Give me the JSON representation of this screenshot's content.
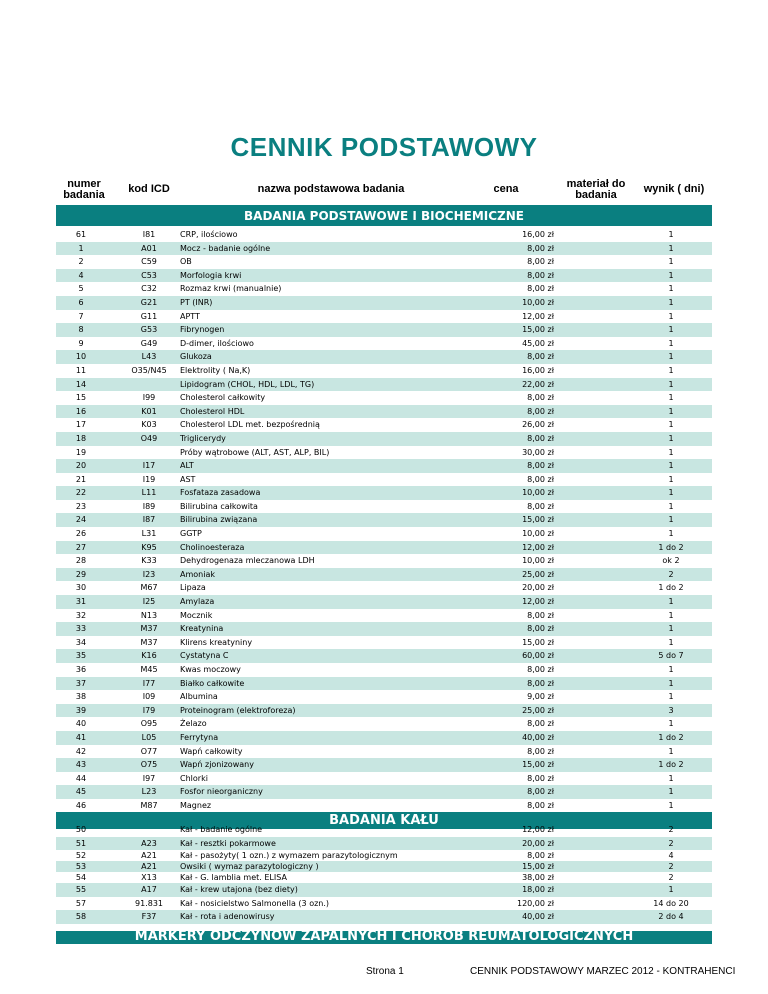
{
  "title": "CENNIK PODSTAWOWY",
  "headers": {
    "numer": "numer badania",
    "kod": "kod ICD",
    "nazwa": "nazwa podstawowa badania",
    "cena": "cena",
    "material": "materiał do badania",
    "wynik": "wynik ( dni)"
  },
  "sections": [
    {
      "title": "BADANIA PODSTAWOWE I BIOCHEMICZNE",
      "rows": [
        {
          "num": "61",
          "kod": "I81",
          "name": "CRP, ilościowo",
          "price": "16,00 zł",
          "wynik": "1"
        },
        {
          "num": "1",
          "kod": "A01",
          "name": "Mocz - badanie ogólne",
          "price": "8,00 zł",
          "wynik": "1"
        },
        {
          "num": "2",
          "kod": "C59",
          "name": "OB",
          "price": "8,00 zł",
          "wynik": "1"
        },
        {
          "num": "4",
          "kod": "C53",
          "name": "Morfologia krwi",
          "price": "8,00 zł",
          "wynik": "1"
        },
        {
          "num": "5",
          "kod": "C32",
          "name": "Rozmaz krwi (manualnie)",
          "price": "8,00 zł",
          "wynik": "1"
        },
        {
          "num": "6",
          "kod": "G21",
          "name": "PT (INR)",
          "price": "10,00 zł",
          "wynik": "1"
        },
        {
          "num": "7",
          "kod": "G11",
          "name": "APTT",
          "price": "12,00 zł",
          "wynik": "1"
        },
        {
          "num": "8",
          "kod": "G53",
          "name": "Fibrynogen",
          "price": "15,00 zł",
          "wynik": "1"
        },
        {
          "num": "9",
          "kod": "G49",
          "name": "D-dimer, ilościowo",
          "price": "45,00 zł",
          "wynik": "1"
        },
        {
          "num": "10",
          "kod": "L43",
          "name": "Glukoza",
          "price": "8,00 zł",
          "wynik": "1"
        },
        {
          "num": "11",
          "kod": "O35/N45",
          "name": "Elektrolity ( Na,K)",
          "price": "16,00 zł",
          "wynik": "1"
        },
        {
          "num": "14",
          "kod": "",
          "name": "Lipidogram (CHOL, HDL, LDL, TG)",
          "price": "22,00 zł",
          "wynik": "1"
        },
        {
          "num": "15",
          "kod": "I99",
          "name": "Cholesterol całkowity",
          "price": "8,00 zł",
          "wynik": "1"
        },
        {
          "num": "16",
          "kod": "K01",
          "name": "Cholesterol HDL",
          "price": "8,00 zł",
          "wynik": "1"
        },
        {
          "num": "17",
          "kod": "K03",
          "name": "Cholesterol LDL met. bezpośrednią",
          "price": "26,00 zł",
          "wynik": "1"
        },
        {
          "num": "18",
          "kod": "O49",
          "name": "Triglicerydy",
          "price": "8,00 zł",
          "wynik": "1"
        },
        {
          "num": "19",
          "kod": "",
          "name": "Próby wątrobowe (ALT, AST, ALP, BIL)",
          "price": "30,00 zł",
          "wynik": "1"
        },
        {
          "num": "20",
          "kod": "I17",
          "name": "ALT",
          "price": "8,00 zł",
          "wynik": "1"
        },
        {
          "num": "21",
          "kod": "I19",
          "name": "AST",
          "price": "8,00 zł",
          "wynik": "1"
        },
        {
          "num": "22",
          "kod": "L11",
          "name": "Fosfataza zasadowa",
          "price": "10,00 zł",
          "wynik": "1"
        },
        {
          "num": "23",
          "kod": "I89",
          "name": "Bilirubina całkowita",
          "price": "8,00 zł",
          "wynik": "1"
        },
        {
          "num": "24",
          "kod": "I87",
          "name": "Bilirubina związana",
          "price": "15,00 zł",
          "wynik": "1"
        },
        {
          "num": "26",
          "kod": "L31",
          "name": "GGTP",
          "price": "10,00 zł",
          "wynik": "1"
        },
        {
          "num": "27",
          "kod": "K95",
          "name": "Cholinoesteraza",
          "price": "12,00 zł",
          "wynik": "1 do 2"
        },
        {
          "num": "28",
          "kod": "K33",
          "name": "Dehydrogenaza mleczanowa LDH",
          "price": "10,00 zł",
          "wynik": "ok 2"
        },
        {
          "num": "29",
          "kod": "I23",
          "name": "Amoniak",
          "price": "25,00 zł",
          "wynik": "2"
        },
        {
          "num": "30",
          "kod": "M67",
          "name": "Lipaza",
          "price": "20,00 zł",
          "wynik": "1 do 2"
        },
        {
          "num": "31",
          "kod": "I25",
          "name": "Amylaza",
          "price": "12,00 zł",
          "wynik": "1"
        },
        {
          "num": "32",
          "kod": "N13",
          "name": "Mocznik",
          "price": "8,00 zł",
          "wynik": "1"
        },
        {
          "num": "33",
          "kod": "M37",
          "name": "Kreatynina",
          "price": "8,00 zł",
          "wynik": "1"
        },
        {
          "num": "34",
          "kod": "M37",
          "name": "Klirens kreatyniny",
          "price": "15,00 zł",
          "wynik": "1"
        },
        {
          "num": "35",
          "kod": "K16",
          "name": "Cystatyna C",
          "price": "60,00 zł",
          "wynik": "5 do 7"
        },
        {
          "num": "36",
          "kod": "M45",
          "name": "Kwas moczowy",
          "price": "8,00 zł",
          "wynik": "1"
        },
        {
          "num": "37",
          "kod": "I77",
          "name": "Białko całkowite",
          "price": "8,00 zł",
          "wynik": "1"
        },
        {
          "num": "38",
          "kod": "I09",
          "name": "Albumina",
          "price": "9,00 zł",
          "wynik": "1"
        },
        {
          "num": "39",
          "kod": "I79",
          "name": "Proteinogram (elektroforeza)",
          "price": "25,00 zł",
          "wynik": "3"
        },
        {
          "num": "40",
          "kod": "O95",
          "name": "Żelazo",
          "price": "8,00 zł",
          "wynik": "1"
        },
        {
          "num": "41",
          "kod": "L05",
          "name": "Ferrytyna",
          "price": "40,00 zł",
          "wynik": "1 do 2"
        },
        {
          "num": "42",
          "kod": "O77",
          "name": "Wapń całkowity",
          "price": "8,00 zł",
          "wynik": "1"
        },
        {
          "num": "43",
          "kod": "O75",
          "name": "Wapń zjonizowany",
          "price": "15,00 zł",
          "wynik": "1 do 2"
        },
        {
          "num": "44",
          "kod": "I97",
          "name": "Chlorki",
          "price": "8,00 zł",
          "wynik": "1"
        },
        {
          "num": "45",
          "kod": "L23",
          "name": "Fosfor nieorganiczny",
          "price": "8,00 zł",
          "wynik": "1"
        },
        {
          "num": "46",
          "kod": "M87",
          "name": "Magnez",
          "price": "8,00 zł",
          "wynik": "1"
        }
      ]
    },
    {
      "title": "BADANIA KAŁU",
      "rows": [
        {
          "num": "50",
          "kod": "",
          "name": "Kał - badanie ogólne",
          "price": "12,00 zł",
          "wynik": "2"
        },
        {
          "num": "51",
          "kod": "A23",
          "name": "Kał - resztki pokarmowe",
          "price": "20,00 zł",
          "wynik": "2"
        },
        {
          "num": "52",
          "kod": "A21",
          "name": "Kał - pasożyty( 1 ozn.) z wymazem parazytologicznym",
          "price": "8,00 zł",
          "wynik": "4"
        },
        {
          "num": "53",
          "kod": "A21",
          "name": "Owsiki (  wymaz parazytologiczny )",
          "price": "15,00 zł",
          "wynik": "2"
        },
        {
          "num": "54",
          "kod": "X13",
          "name": "Kał - G. lamblia met. ELISA",
          "price": "38,00 zł",
          "wynik": "2"
        },
        {
          "num": "55",
          "kod": "A17",
          "name": "Kał - krew utajona (bez diety)",
          "price": "18,00 zł",
          "wynik": "1"
        },
        {
          "num": "57",
          "kod": "91.831",
          "name": "Kał - nosicielstwo Salmonella (3 ozn.)",
          "price": "120,00 zł",
          "wynik": "14 do 20"
        },
        {
          "num": "58",
          "kod": "F37",
          "name": "Kał - rota i adenowirusy",
          "price": "40,00 zł",
          "wynik": "2 do 4"
        }
      ]
    },
    {
      "title": "MARKERY ODCZYNÓW ZAPALNYCH I CHORÓB REUMATOLOGICZNYCH",
      "rows": []
    }
  ],
  "footer": {
    "page": "Strona 1",
    "doc": "CENNIK PODSTAWOWY MARZEC 2012 - KONTRAHENCI"
  },
  "colors": {
    "accent": "#0a7f80",
    "shade": "#c8e6e1"
  }
}
